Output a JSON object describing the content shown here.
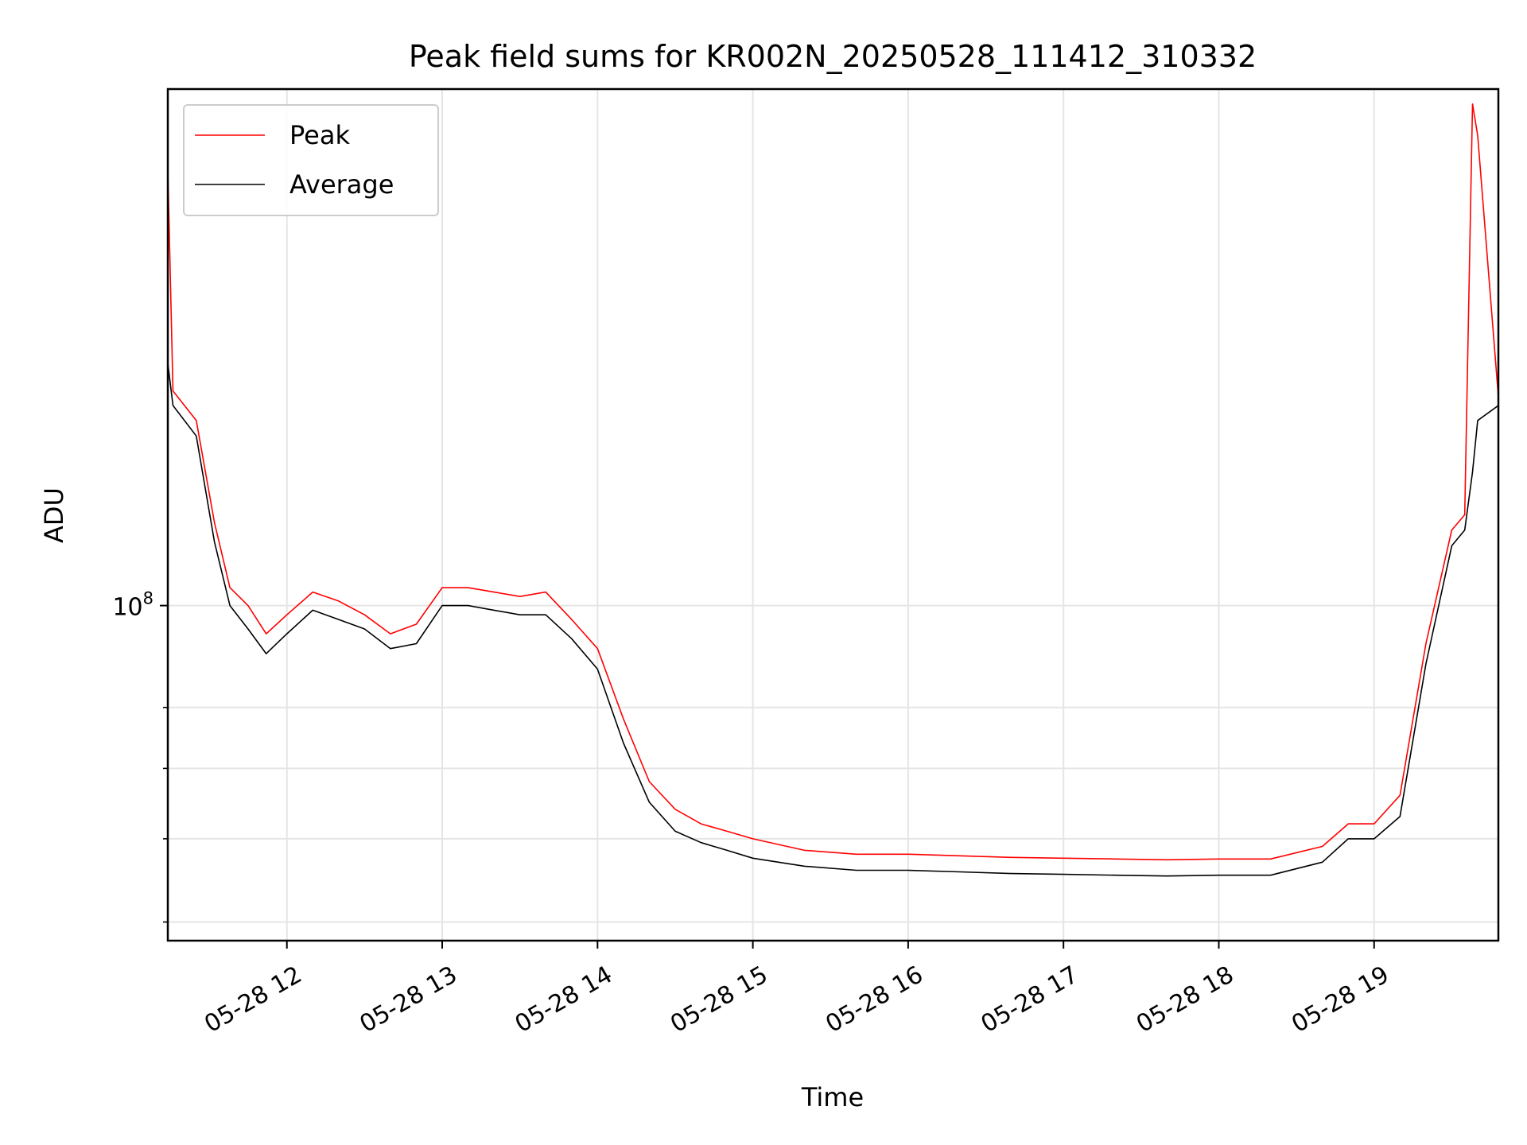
{
  "chart_data": {
    "type": "line",
    "title": "Peak field sums for KR002N_20250528_111412_310332",
    "xlabel": "Time",
    "ylabel": "ADU",
    "yscale": "log",
    "xlim": [
      "05-28 11:14",
      "05-28 19:48"
    ],
    "ylim": [
      48000000,
      310000000
    ],
    "grid": true,
    "legend_position": "top-left",
    "x_ticks": [
      "05-28 12",
      "05-28 13",
      "05-28 14",
      "05-28 15",
      "05-28 16",
      "05-28 17",
      "05-28 18",
      "05-28 19"
    ],
    "y_ticks": [
      {
        "label": "10",
        "exponent": "8",
        "value": 100000000
      }
    ],
    "y_minor_ticks": [
      50000000,
      60000000,
      70000000,
      80000000
    ],
    "series": [
      {
        "name": "Peak",
        "color": "#ff0000",
        "x": [
          "05-28 11:14",
          "05-28 11:16",
          "05-28 11:25",
          "05-28 11:32",
          "05-28 11:38",
          "05-28 11:45",
          "05-28 11:52",
          "05-28 12:00",
          "05-28 12:10",
          "05-28 12:20",
          "05-28 12:30",
          "05-28 12:40",
          "05-28 12:50",
          "05-28 13:00",
          "05-28 13:10",
          "05-28 13:20",
          "05-28 13:30",
          "05-28 13:40",
          "05-28 13:50",
          "05-28 14:00",
          "05-28 14:10",
          "05-28 14:20",
          "05-28 14:30",
          "05-28 14:40",
          "05-28 14:50",
          "05-28 15:00",
          "05-28 15:20",
          "05-28 15:40",
          "05-28 16:00",
          "05-28 16:20",
          "05-28 16:40",
          "05-28 17:00",
          "05-28 17:20",
          "05-28 17:40",
          "05-28 18:00",
          "05-28 18:20",
          "05-28 18:40",
          "05-28 18:50",
          "05-28 19:00",
          "05-28 19:10",
          "05-28 19:20",
          "05-28 19:30",
          "05-28 19:35",
          "05-28 19:38",
          "05-28 19:40",
          "05-28 19:48"
        ],
        "y": [
          260000000,
          160000000,
          150000000,
          120000000,
          104000000,
          100000000,
          94000000,
          98000000,
          103000000,
          101000000,
          98000000,
          94000000,
          96000000,
          104000000,
          104000000,
          103000000,
          102000000,
          103000000,
          97000000,
          91000000,
          78000000,
          68000000,
          64000000,
          62000000,
          61000000,
          60000000,
          58500000,
          58000000,
          58000000,
          57800000,
          57600000,
          57500000,
          57400000,
          57300000,
          57400000,
          57400000,
          59000000,
          62000000,
          62000000,
          66000000,
          92000000,
          118000000,
          122000000,
          300000000,
          280000000,
          158000000
        ]
      },
      {
        "name": "Average",
        "color": "#000000",
        "x": [
          "05-28 11:14",
          "05-28 11:16",
          "05-28 11:25",
          "05-28 11:32",
          "05-28 11:38",
          "05-28 11:45",
          "05-28 11:52",
          "05-28 12:00",
          "05-28 12:10",
          "05-28 12:20",
          "05-28 12:30",
          "05-28 12:40",
          "05-28 12:50",
          "05-28 13:00",
          "05-28 13:10",
          "05-28 13:20",
          "05-28 13:30",
          "05-28 13:40",
          "05-28 13:50",
          "05-28 14:00",
          "05-28 14:10",
          "05-28 14:20",
          "05-28 14:30",
          "05-28 14:40",
          "05-28 14:50",
          "05-28 15:00",
          "05-28 15:20",
          "05-28 15:40",
          "05-28 16:00",
          "05-28 16:20",
          "05-28 16:40",
          "05-28 17:00",
          "05-28 17:20",
          "05-28 17:40",
          "05-28 18:00",
          "05-28 18:20",
          "05-28 18:40",
          "05-28 18:50",
          "05-28 19:00",
          "05-28 19:10",
          "05-28 19:20",
          "05-28 19:30",
          "05-28 19:35",
          "05-28 19:38",
          "05-28 19:40",
          "05-28 19:48"
        ],
        "y": [
          170000000,
          155000000,
          145000000,
          115000000,
          100000000,
          95000000,
          90000000,
          94000000,
          99000000,
          97000000,
          95000000,
          91000000,
          92000000,
          100000000,
          100000000,
          99000000,
          98000000,
          98000000,
          93000000,
          87000000,
          74000000,
          65000000,
          61000000,
          59500000,
          58500000,
          57500000,
          56500000,
          56000000,
          56000000,
          55800000,
          55600000,
          55500000,
          55400000,
          55300000,
          55400000,
          55400000,
          57000000,
          60000000,
          60000000,
          63000000,
          88000000,
          114000000,
          118000000,
          134000000,
          150000000,
          155000000
        ]
      }
    ]
  }
}
